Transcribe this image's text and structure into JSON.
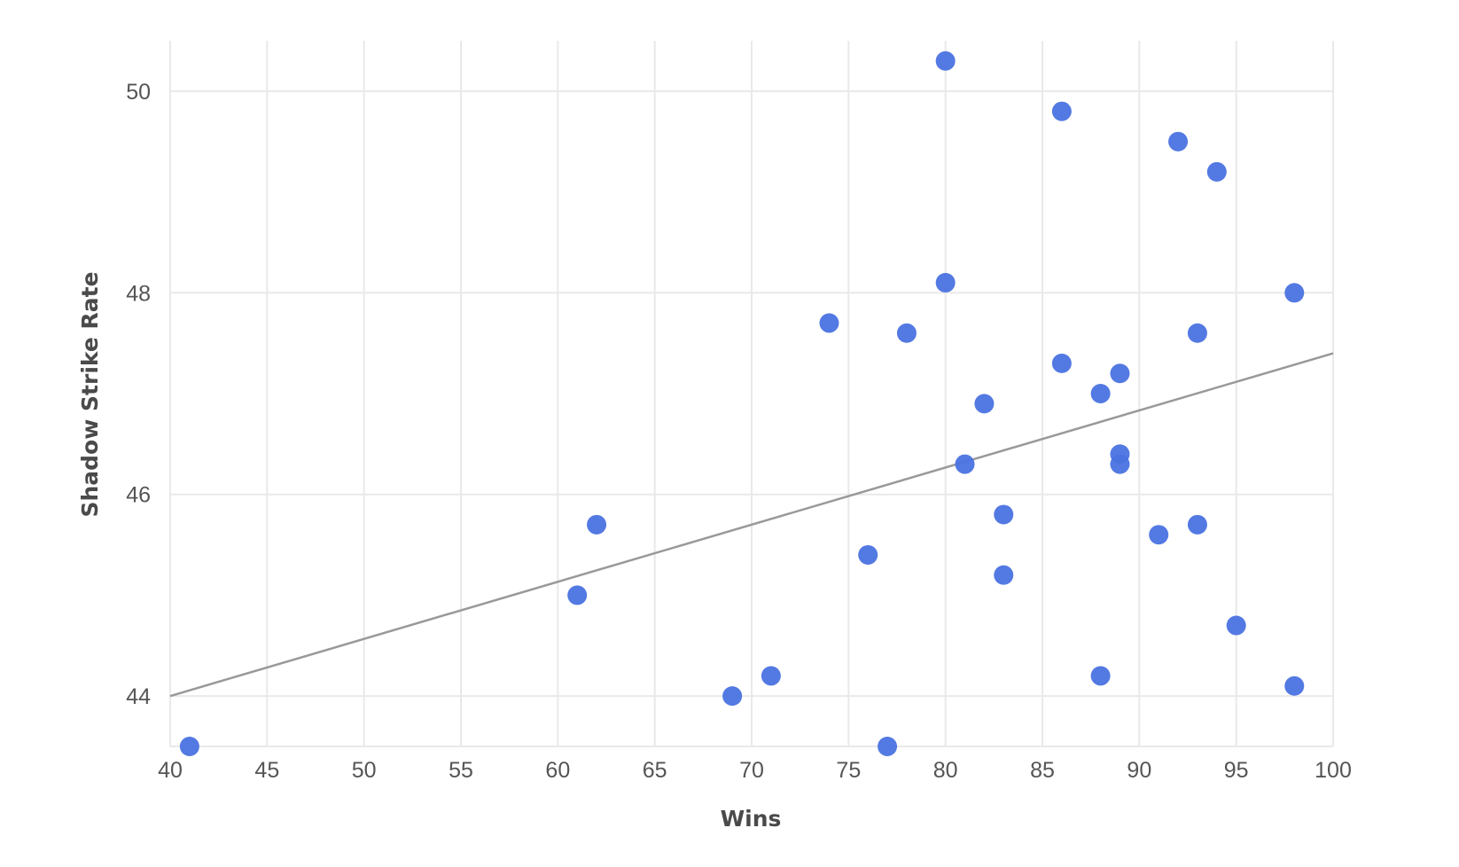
{
  "chart_data": {
    "type": "scatter",
    "xlabel": "Wins",
    "ylabel": "Shadow Strike Rate",
    "xlim": [
      40,
      100
    ],
    "ylim": [
      43.5,
      50.5
    ],
    "x_ticks": [
      40,
      45,
      50,
      55,
      60,
      65,
      70,
      75,
      80,
      85,
      90,
      95,
      100
    ],
    "y_ticks": [
      44,
      46,
      48,
      50
    ],
    "grid": true,
    "legend": "none",
    "colors": {
      "points": "#4a72e0",
      "trendline": "#999999",
      "grid": "#e9e9e9"
    },
    "series": [
      {
        "points": [
          {
            "x": 41,
            "y": 43.5
          },
          {
            "x": 61,
            "y": 45.0
          },
          {
            "x": 62,
            "y": 45.7
          },
          {
            "x": 69,
            "y": 44.0
          },
          {
            "x": 71,
            "y": 44.2
          },
          {
            "x": 74,
            "y": 47.7
          },
          {
            "x": 76,
            "y": 45.4
          },
          {
            "x": 77,
            "y": 43.5
          },
          {
            "x": 78,
            "y": 47.6
          },
          {
            "x": 80,
            "y": 50.3
          },
          {
            "x": 80,
            "y": 48.1
          },
          {
            "x": 81,
            "y": 46.3
          },
          {
            "x": 82,
            "y": 46.9
          },
          {
            "x": 83,
            "y": 45.8
          },
          {
            "x": 83,
            "y": 45.2
          },
          {
            "x": 86,
            "y": 49.8
          },
          {
            "x": 86,
            "y": 47.3
          },
          {
            "x": 88,
            "y": 47.0
          },
          {
            "x": 88,
            "y": 44.2
          },
          {
            "x": 89,
            "y": 47.2
          },
          {
            "x": 89,
            "y": 46.4
          },
          {
            "x": 89,
            "y": 46.3
          },
          {
            "x": 91,
            "y": 45.6
          },
          {
            "x": 92,
            "y": 49.5
          },
          {
            "x": 93,
            "y": 47.6
          },
          {
            "x": 93,
            "y": 45.7
          },
          {
            "x": 94,
            "y": 49.2
          },
          {
            "x": 95,
            "y": 44.7
          },
          {
            "x": 98,
            "y": 48.0
          },
          {
            "x": 98,
            "y": 44.1
          }
        ]
      }
    ],
    "trendline": {
      "x": [
        40,
        100
      ],
      "y": [
        44.0,
        47.4
      ]
    }
  }
}
